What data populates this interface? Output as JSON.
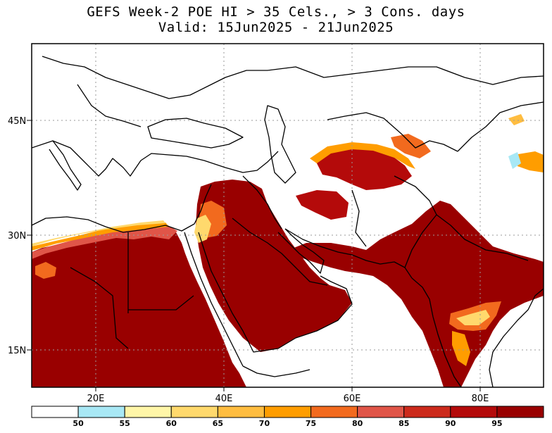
{
  "title": {
    "line1": "GEFS Week-2 POE HI > 35 Cels., > 3 Cons. days",
    "line2": "Valid: 15Jun2025 - 21Jun2025"
  },
  "map": {
    "region": "Africa, Middle East, South Asia",
    "lat_labels": [
      "45N",
      "30N",
      "15N"
    ],
    "lon_labels": [
      "20E",
      "40E",
      "60E",
      "80E"
    ],
    "grid": true,
    "field_colors": {
      "ge95": "#990000",
      "90_95": "#b40a0a",
      "85_90": "#cc2a1c",
      "80_85": "#e05548",
      "75_80": "#f26a1e",
      "70_75": "#ff9d00",
      "65_70": "#ffbd40",
      "60_65": "#ffd96d",
      "55_60": "#fff6a8",
      "50_55": "#a8e8f5",
      "lt50": "#ffffff"
    }
  },
  "colorbar": {
    "labels": [
      "50",
      "55",
      "60",
      "65",
      "70",
      "75",
      "80",
      "85",
      "90",
      "95"
    ],
    "colors": [
      "#ffffff",
      "#a8e8f5",
      "#fff6a8",
      "#ffd96d",
      "#ffbd40",
      "#ff9d00",
      "#f26a1e",
      "#e05548",
      "#cc2a1c",
      "#b40a0a",
      "#990000"
    ]
  }
}
